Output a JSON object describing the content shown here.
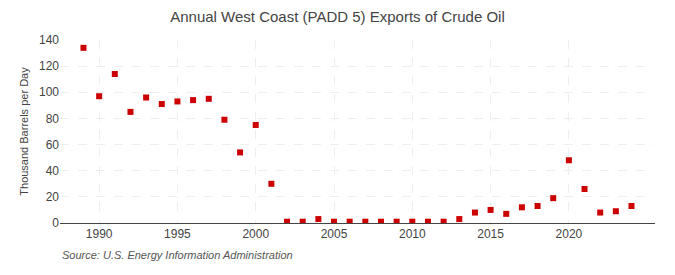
{
  "chart_data": {
    "type": "scatter",
    "title": "Annual West Coast (PADD 5) Exports of Crude Oil",
    "ylabel": "Thousand Barrels per Day",
    "annotations": [
      "Source: U.S. Energy Information Administration"
    ],
    "color": "#cc0000",
    "marker": "square",
    "grid": true,
    "xlim": [
      1987.5,
      2025.5
    ],
    "ylim": [
      0,
      140
    ],
    "xticks": [
      1990,
      1995,
      2000,
      2005,
      2010,
      2015,
      2020
    ],
    "yticks": [
      0,
      20,
      40,
      60,
      80,
      100,
      120,
      140
    ],
    "x": [
      1989,
      1990,
      1991,
      1992,
      1993,
      1994,
      1995,
      1996,
      1997,
      1998,
      1999,
      2000,
      2001,
      2002,
      2003,
      2004,
      2005,
      2006,
      2007,
      2008,
      2009,
      2010,
      2011,
      2012,
      2013,
      2014,
      2015,
      2016,
      2017,
      2018,
      2019,
      2020,
      2021,
      2022,
      2023,
      2024
    ],
    "values": [
      134,
      97,
      114,
      85,
      96,
      91,
      93,
      94,
      95,
      79,
      54,
      75,
      30,
      1,
      1,
      3,
      1,
      1,
      1,
      1,
      1,
      1,
      1,
      1,
      3,
      8,
      10,
      7,
      12,
      13,
      19,
      48,
      26,
      8,
      9,
      13
    ]
  }
}
